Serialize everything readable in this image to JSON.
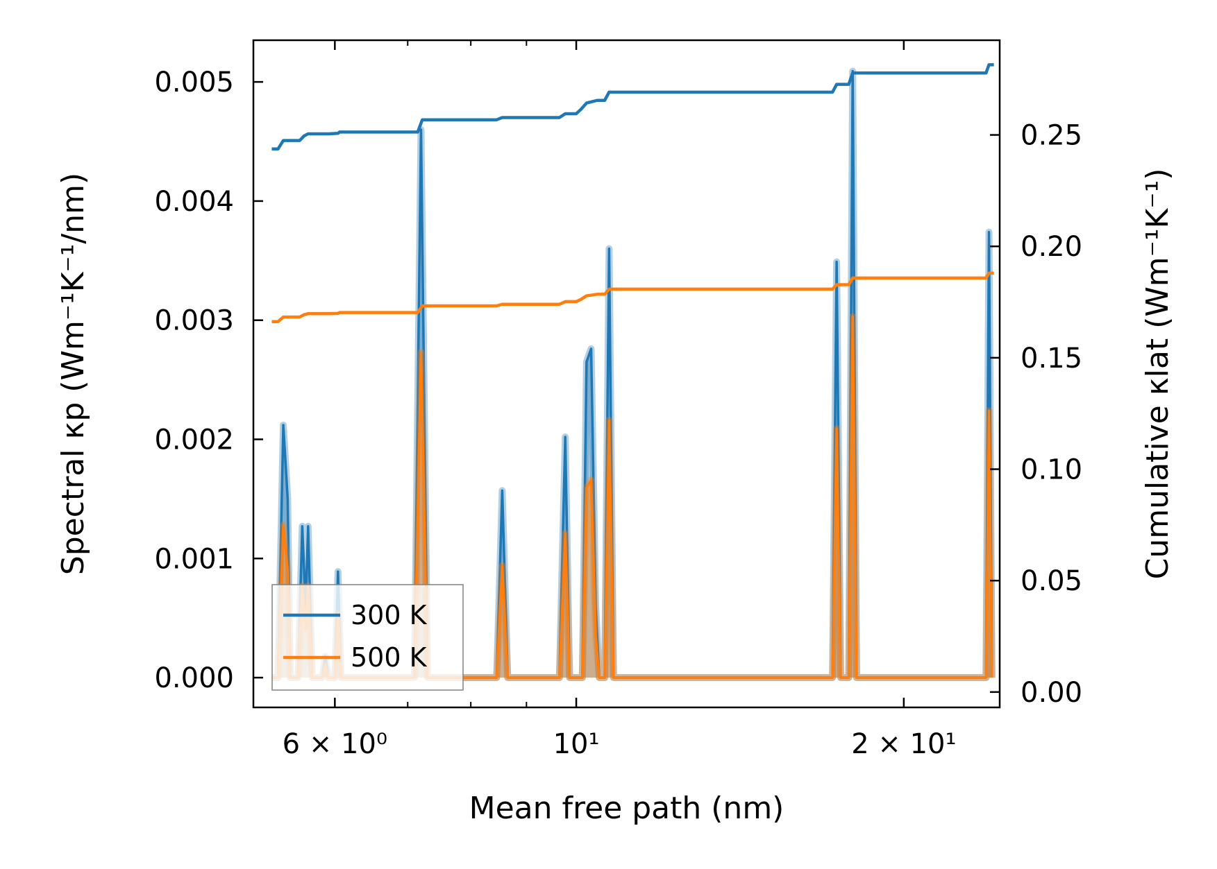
{
  "chart_data": {
    "type": "line",
    "title": "",
    "xlabel": "Mean free path (nm)",
    "ylabel_left": "Spectral κp (Wm⁻¹K⁻¹/nm)",
    "ylabel_right": "Cumulative κlat (Wm⁻¹K⁻¹)",
    "x_scale": "log",
    "xlim": [
      5.05,
      24.5
    ],
    "ylim_left": [
      -0.00025,
      0.00535
    ],
    "ylim_right": [
      -0.0069,
      0.2925
    ],
    "x_ticks": [
      {
        "value": 6,
        "label": "6 × 10⁰"
      },
      {
        "value": 10,
        "label": "10¹"
      },
      {
        "value": 20,
        "label": "2 × 10¹"
      }
    ],
    "x_minor_ticks": [
      7,
      8,
      9
    ],
    "y_ticks_left": [
      {
        "value": 0.0,
        "label": "0.000"
      },
      {
        "value": 0.001,
        "label": "0.001"
      },
      {
        "value": 0.002,
        "label": "0.002"
      },
      {
        "value": 0.003,
        "label": "0.003"
      },
      {
        "value": 0.004,
        "label": "0.004"
      },
      {
        "value": 0.005,
        "label": "0.005"
      }
    ],
    "y_ticks_right": [
      {
        "value": 0.0,
        "label": "0.00"
      },
      {
        "value": 0.05,
        "label": "0.05"
      },
      {
        "value": 0.1,
        "label": "0.10"
      },
      {
        "value": 0.15,
        "label": "0.15"
      },
      {
        "value": 0.2,
        "label": "0.20"
      },
      {
        "value": 0.25,
        "label": "0.25"
      }
    ],
    "legend": {
      "location": "lower-left",
      "entries": [
        "300 K",
        "500 K"
      ]
    },
    "spectral_series": [
      {
        "name": "300 K",
        "color": "#1f77b4",
        "points": [
          [
            5.25,
            0
          ],
          [
            5.32,
            0
          ],
          [
            5.38,
            0.00212
          ],
          [
            5.43,
            0.0015
          ],
          [
            5.46,
            0
          ],
          [
            5.55,
            0
          ],
          [
            5.6,
            0.00127
          ],
          [
            5.64,
            0.0006
          ],
          [
            5.67,
            0.00127
          ],
          [
            5.72,
            0
          ],
          [
            5.84,
            0
          ],
          [
            5.88,
            0.00018
          ],
          [
            5.92,
            0
          ],
          [
            6.0,
            0
          ],
          [
            6.04,
            0.00089
          ],
          [
            6.08,
            0
          ],
          [
            7.1,
            0
          ],
          [
            7.2,
            0.0046
          ],
          [
            7.3,
            0
          ],
          [
            8.45,
            0
          ],
          [
            8.55,
            0.00157
          ],
          [
            8.65,
            0
          ],
          [
            9.65,
            0
          ],
          [
            9.77,
            0.00202
          ],
          [
            9.86,
            0
          ],
          [
            10.13,
            0
          ],
          [
            10.22,
            0.00265
          ],
          [
            10.32,
            0.00276
          ],
          [
            10.42,
            0.0006
          ],
          [
            10.5,
            0
          ],
          [
            10.62,
            0
          ],
          [
            10.72,
            0.0036
          ],
          [
            10.82,
            0
          ],
          [
            17.2,
            0
          ],
          [
            17.35,
            0.00349
          ],
          [
            17.5,
            0
          ],
          [
            17.8,
            0
          ],
          [
            17.95,
            0.00509
          ],
          [
            18.1,
            0
          ],
          [
            23.8,
            0
          ],
          [
            23.95,
            0.00374
          ],
          [
            24.1,
            0
          ]
        ]
      },
      {
        "name": "500 K",
        "color": "#ff7f0e",
        "points": [
          [
            5.25,
            0
          ],
          [
            5.32,
            0
          ],
          [
            5.38,
            0.00128
          ],
          [
            5.43,
            0.0009
          ],
          [
            5.46,
            0
          ],
          [
            5.55,
            0
          ],
          [
            5.6,
            0.00077
          ],
          [
            5.64,
            0.0004
          ],
          [
            5.67,
            0.00077
          ],
          [
            5.72,
            0
          ],
          [
            5.84,
            0
          ],
          [
            5.88,
            0.00011
          ],
          [
            5.92,
            0
          ],
          [
            6.0,
            0
          ],
          [
            6.04,
            0.00054
          ],
          [
            6.08,
            0
          ],
          [
            7.1,
            0
          ],
          [
            7.2,
            0.00273
          ],
          [
            7.3,
            0
          ],
          [
            8.45,
            0
          ],
          [
            8.55,
            0.00094
          ],
          [
            8.65,
            0
          ],
          [
            9.65,
            0
          ],
          [
            9.77,
            0.00121
          ],
          [
            9.86,
            0
          ],
          [
            10.13,
            0
          ],
          [
            10.22,
            0.00159
          ],
          [
            10.32,
            0.00166
          ],
          [
            10.42,
            0.00035
          ],
          [
            10.5,
            0
          ],
          [
            10.62,
            0
          ],
          [
            10.72,
            0.00216
          ],
          [
            10.82,
            0
          ],
          [
            17.2,
            0
          ],
          [
            17.35,
            0.00209
          ],
          [
            17.5,
            0
          ],
          [
            17.8,
            0
          ],
          [
            17.95,
            0.00303
          ],
          [
            18.1,
            0
          ],
          [
            23.8,
            0
          ],
          [
            23.95,
            0.00224
          ],
          [
            24.1,
            0
          ]
        ]
      }
    ],
    "cumulative_series": [
      {
        "name": "300 K",
        "color": "#1f77b4",
        "points": [
          [
            5.25,
            0.2437
          ],
          [
            5.32,
            0.2437
          ],
          [
            5.38,
            0.2475
          ],
          [
            5.43,
            0.2475
          ],
          [
            5.57,
            0.2475
          ],
          [
            5.62,
            0.2495
          ],
          [
            5.67,
            0.2505
          ],
          [
            5.92,
            0.2505
          ],
          [
            6.04,
            0.2507
          ],
          [
            6.06,
            0.2513
          ],
          [
            7.15,
            0.2513
          ],
          [
            7.22,
            0.2568
          ],
          [
            8.45,
            0.2568
          ],
          [
            8.55,
            0.2578
          ],
          [
            9.65,
            0.2578
          ],
          [
            9.77,
            0.2595
          ],
          [
            10.0,
            0.2595
          ],
          [
            10.1,
            0.2615
          ],
          [
            10.22,
            0.2643
          ],
          [
            10.45,
            0.2655
          ],
          [
            10.62,
            0.2655
          ],
          [
            10.72,
            0.2692
          ],
          [
            17.2,
            0.2692
          ],
          [
            17.35,
            0.2727
          ],
          [
            17.8,
            0.2727
          ],
          [
            17.95,
            0.2778
          ],
          [
            23.8,
            0.2778
          ],
          [
            23.95,
            0.2815
          ],
          [
            24.2,
            0.2815
          ]
        ]
      },
      {
        "name": "500 K",
        "color": "#ff7f0e",
        "points": [
          [
            5.25,
            0.1662
          ],
          [
            5.32,
            0.1662
          ],
          [
            5.38,
            0.1683
          ],
          [
            5.43,
            0.1683
          ],
          [
            5.57,
            0.1683
          ],
          [
            5.62,
            0.1693
          ],
          [
            5.67,
            0.1698
          ],
          [
            5.92,
            0.1698
          ],
          [
            6.04,
            0.1699
          ],
          [
            6.06,
            0.1703
          ],
          [
            7.15,
            0.1703
          ],
          [
            7.22,
            0.1733
          ],
          [
            8.45,
            0.1733
          ],
          [
            8.55,
            0.174
          ],
          [
            9.65,
            0.174
          ],
          [
            9.77,
            0.1752
          ],
          [
            10.0,
            0.1752
          ],
          [
            10.1,
            0.1762
          ],
          [
            10.22,
            0.1778
          ],
          [
            10.45,
            0.1785
          ],
          [
            10.62,
            0.1785
          ],
          [
            10.72,
            0.1808
          ],
          [
            17.2,
            0.1808
          ],
          [
            17.35,
            0.1828
          ],
          [
            17.8,
            0.1828
          ],
          [
            17.95,
            0.1858
          ],
          [
            23.8,
            0.1858
          ],
          [
            23.95,
            0.188
          ],
          [
            24.2,
            0.188
          ]
        ]
      }
    ]
  }
}
